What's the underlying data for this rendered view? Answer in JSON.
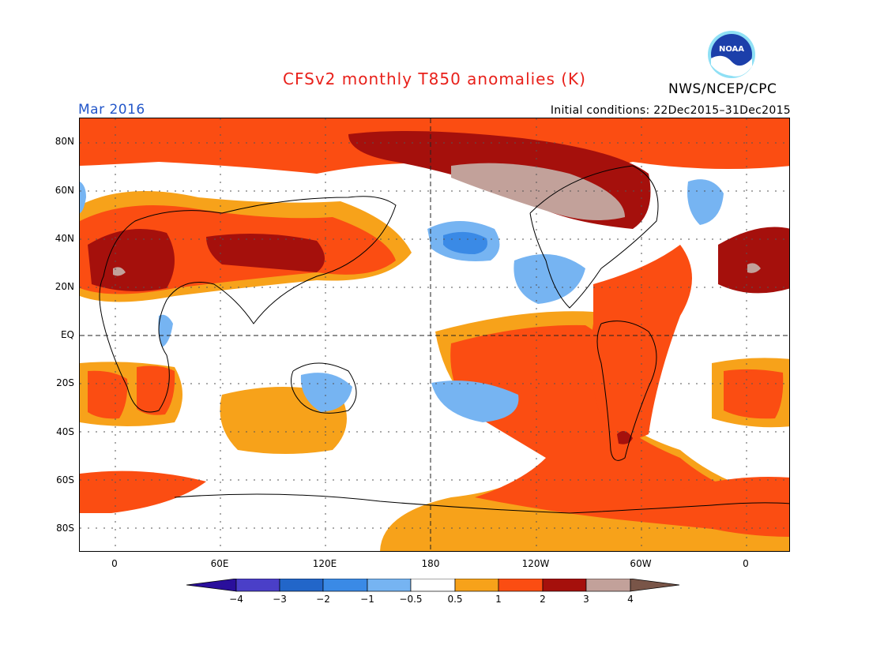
{
  "title": "CFSv2 monthly T850 anomalies (K)",
  "month": "Mar 2016",
  "initial_conditions": "Initial conditions: 22Dec2015–31Dec2015",
  "agency": "NWS/NCEP/CPC",
  "logo_text": "NOAA",
  "colors": {
    "title": "#e8201a",
    "month": "#2256c9",
    "bins": [
      "#2a0f9c",
      "#4a3fc8",
      "#2266c9",
      "#3a8ae6",
      "#76b4f2",
      "#ffffff",
      "#f7a21a",
      "#fb4d12",
      "#a5100c",
      "#c2a19a",
      "#795548"
    ]
  },
  "lat_labels": [
    "80N",
    "60N",
    "40N",
    "20N",
    "EQ",
    "20S",
    "40S",
    "60S",
    "80S"
  ],
  "lon_labels": [
    "0",
    "60E",
    "120E",
    "180",
    "120W",
    "60W",
    "0"
  ],
  "colorbar": {
    "labels": [
      "−4",
      "−3",
      "−2",
      "−1",
      "−0.5",
      "0.5",
      "1",
      "2",
      "3",
      "4"
    ]
  },
  "chart_data": {
    "type": "heatmap",
    "title": "CFSv2 monthly T850 anomalies (K)",
    "variable": "850 hPa temperature anomaly",
    "units": "K",
    "valid_month": "Mar 2016",
    "initial_conditions": "22Dec2015–31Dec2015",
    "longitude_range": [
      -20,
      380
    ],
    "latitude_range": [
      -90,
      90
    ],
    "contour_levels": [
      -4,
      -3,
      -2,
      -1,
      -0.5,
      0.5,
      1,
      2,
      3,
      4
    ],
    "grid": "dotted"
  }
}
